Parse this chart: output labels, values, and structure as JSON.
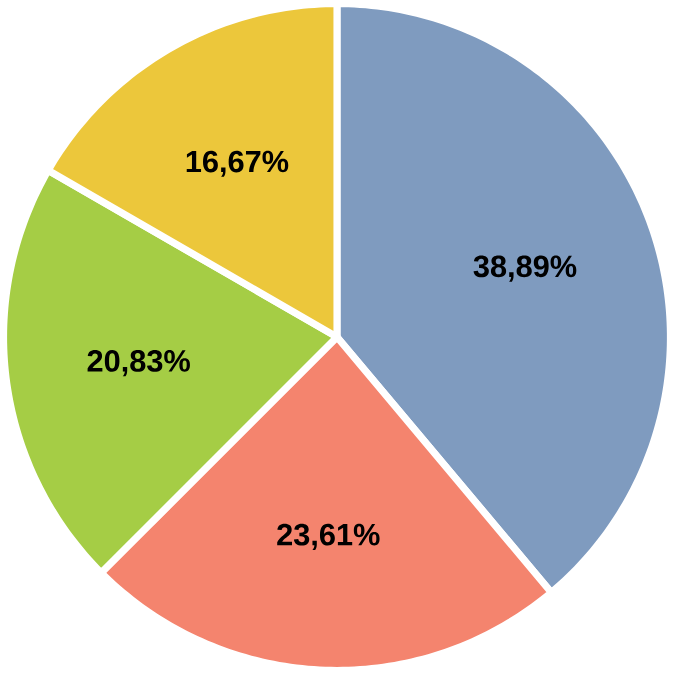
{
  "chart_data": {
    "type": "pie",
    "categories": [
      null,
      null,
      null,
      null
    ],
    "values": [
      38.89,
      23.61,
      20.83,
      16.67
    ],
    "colors": [
      "#7f9bbf",
      "#f4846e",
      "#a5cd45",
      "#ecc73b"
    ],
    "value_labels": [
      "38,89%",
      "23,61%",
      "20,83%",
      "16,67%"
    ]
  }
}
